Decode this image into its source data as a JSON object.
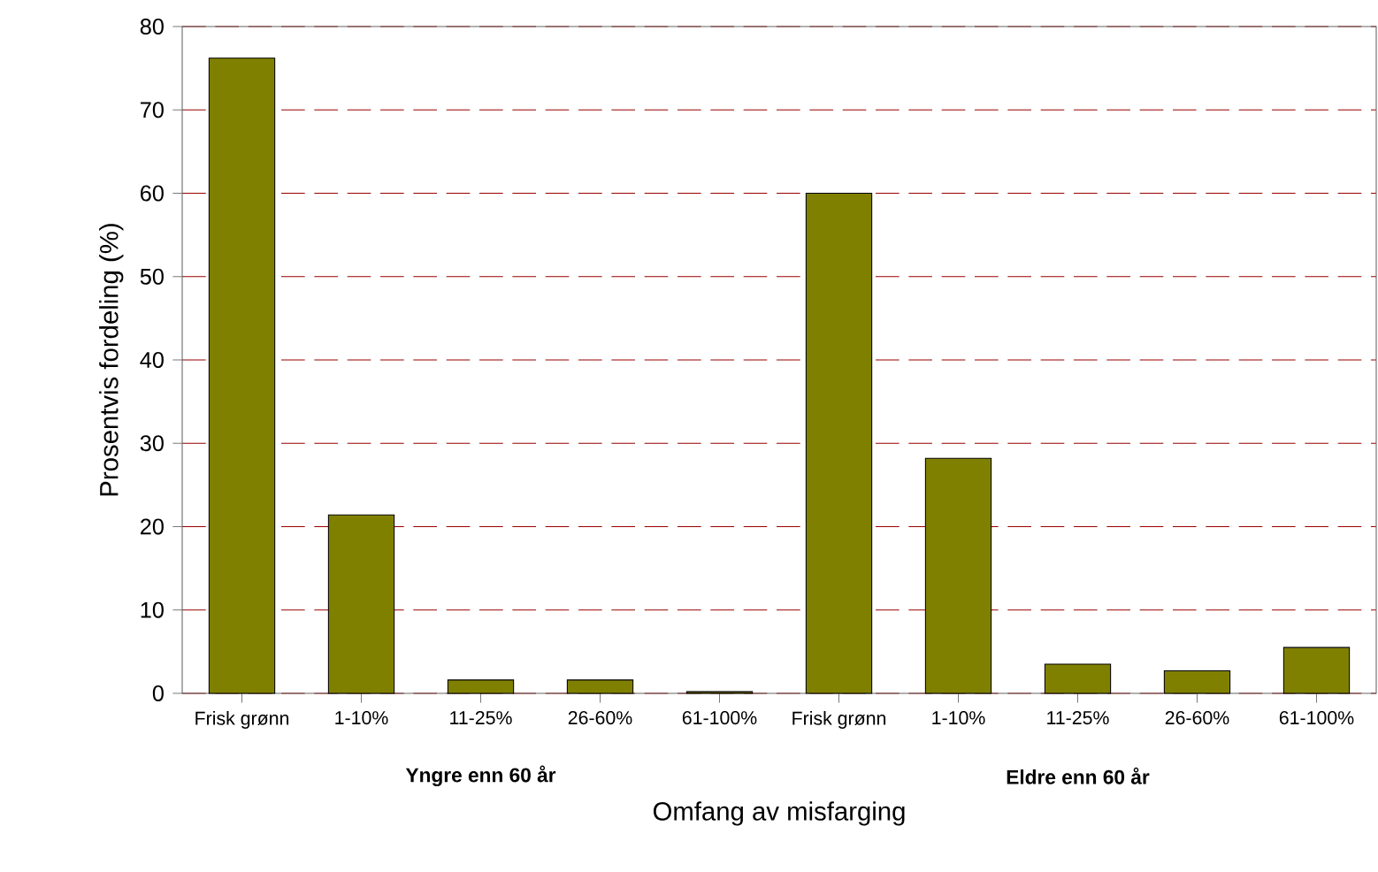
{
  "chart_data": {
    "type": "bar",
    "xlabel": "Omfang av misfarging",
    "ylabel": "Prosentvis fordeling (%)",
    "categories": [
      "Frisk grønn",
      "1-10%",
      "11-25%",
      "26-60%",
      "61-100%",
      "Frisk grønn",
      "1-10%",
      "11-25%",
      "26-60%",
      "61-100%"
    ],
    "values": [
      76.2,
      21.4,
      1.6,
      1.6,
      0.2,
      60,
      28.2,
      3.5,
      2.7,
      5.5
    ],
    "color": "#808000",
    "ylim": [
      0,
      80
    ],
    "yticks": [
      0,
      10,
      20,
      30,
      40,
      50,
      60,
      70,
      80
    ],
    "grid": "y",
    "annotations": [
      "Yngre enn 60 år",
      "Eldre enn 60 år"
    ]
  }
}
